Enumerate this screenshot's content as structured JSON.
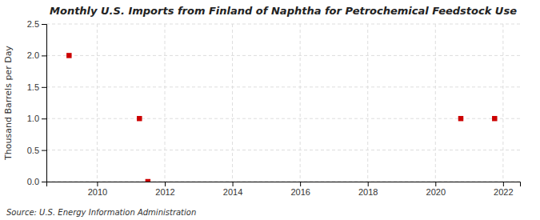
{
  "chart_data": {
    "type": "scatter",
    "title": "Monthly U.S. Imports from Finland of Naphtha for Petrochemical Feedstock Use",
    "ylabel": "Thousand Barrels per Day",
    "annotations": [
      "Source: U.S. Energy Information Administration"
    ],
    "x": [
      2009.17,
      2011.25,
      2011.5,
      2020.75,
      2021.75
    ],
    "values": [
      2.0,
      1.0,
      0.0,
      1.0,
      1.0
    ],
    "color": "#cc0000",
    "marker": "square",
    "xlim": [
      2008.5,
      2022.5
    ],
    "ylim": [
      0.0,
      2.5
    ],
    "xticks": [
      2010,
      2012,
      2014,
      2016,
      2018,
      2020,
      2022
    ],
    "yticks": [
      {
        "value": 0.0,
        "label": "0.0"
      },
      0.5,
      {
        "value": 1.0,
        "label": "1.0"
      },
      1.5,
      {
        "value": 2.0,
        "label": "2.0"
      },
      2.5
    ],
    "grid": true
  }
}
